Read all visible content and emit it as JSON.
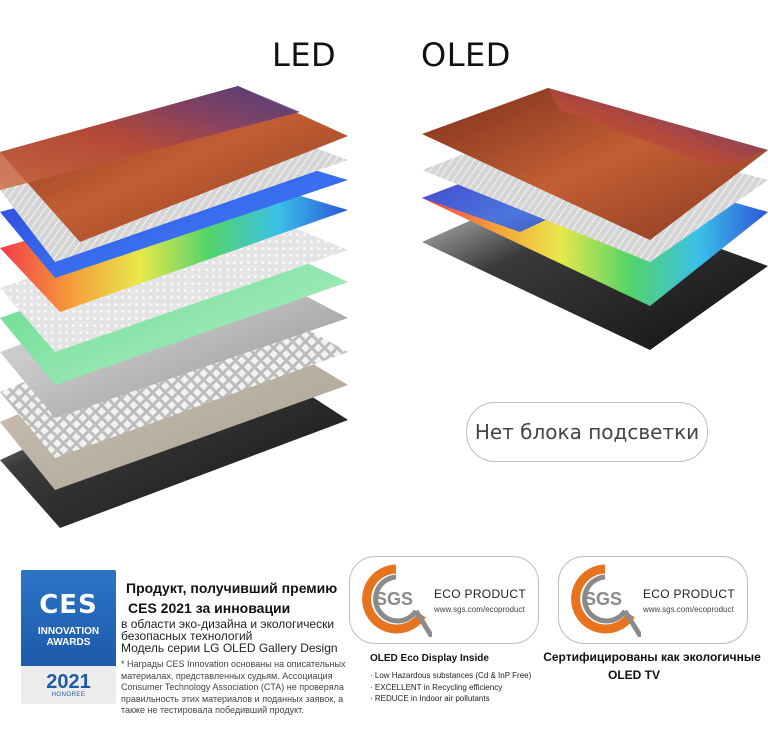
{
  "titles": {
    "led": "LED",
    "oled": "OLED"
  },
  "pill_label": "Нет блока подсветки",
  "ces_badge": {
    "logo": "CES",
    "line1": "INNOVATION",
    "line2": "AWARDS",
    "year": "2021",
    "honoree": "HONOREE"
  },
  "award": {
    "title_line1": "Продукт, получивший премию",
    "title_line2": "CES 2021 за инновации",
    "sub_line1": "в области эко-дизайна и экологически",
    "sub_line2": "безопасных технологий",
    "sub_line3": "Модель серии LG OLED Gallery Design",
    "note": "* Награды CES Innovation основаны на описательных материалах, представленных судьям. Ассоциация Consumer Technology Association (CTA) не проверяла правильность этих материалов и поданных заявок, а также не тестировала победивший продукт."
  },
  "sgs_cards": [
    {
      "logo": "SGS",
      "name": "ECO PRODUCT",
      "url": "www.sgs.com/ecoproduct"
    },
    {
      "logo": "SGS",
      "name": "ECO PRODUCT",
      "url": "www.sgs.com/ecoproduct"
    }
  ],
  "oled_eco": {
    "heading": "OLED Eco Display Inside",
    "items": [
      "· Low Hazardous substances (Cd & InP Free)",
      "· EXCELLENT in Recycling efficiency",
      "· REDUCE in Indoor air pollutants"
    ]
  },
  "certified": {
    "line1": "Сертифицированы как экологичные",
    "line2": "OLED TV"
  },
  "colors": {
    "sgs_orange": "#e8731f",
    "sgs_gray": "#8a8a8a",
    "ces_blue": "#1e5aa8"
  }
}
